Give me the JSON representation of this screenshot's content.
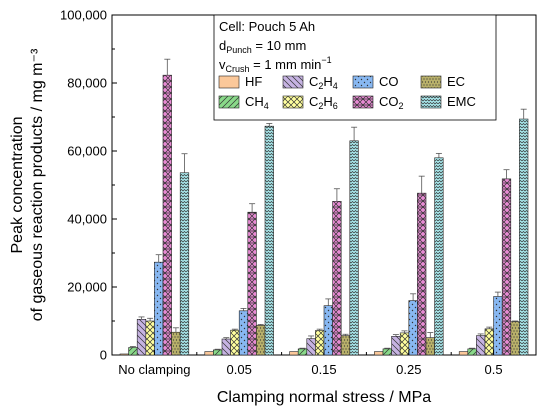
{
  "chart_data": {
    "type": "bar",
    "xlabel": "Clamping normal stress / MPa",
    "ylabel_line1": "Peak concentration",
    "ylabel_line2": "of gaseous reaction products / mg m⁻³",
    "ylim": [
      0,
      100000
    ],
    "yticks": [
      0,
      20000,
      40000,
      60000,
      80000,
      100000
    ],
    "ytick_labels": [
      "0",
      "20,000",
      "40,000",
      "60,000",
      "80,000",
      "100,000"
    ],
    "categories": [
      "No clamping",
      "0.05",
      "0.15",
      "0.25",
      "0.5"
    ],
    "info": {
      "cell": "Cell: Pouch 5 Ah",
      "d_prefix": "d",
      "d_sub": "Punch",
      "d_value": " = 10 mm",
      "v_prefix": "v",
      "v_sub": "Crush",
      "v_value": " = 1 mm min",
      "v_sup": "−1"
    },
    "legend_placement": "top-center",
    "series": [
      {
        "name": "HF",
        "label_parts": [
          "HF"
        ],
        "color": "#fbc89a",
        "pattern": "none",
        "values": [
          300,
          1000,
          1000,
          1000,
          1000
        ],
        "errors": [
          0,
          0,
          0,
          0,
          0
        ]
      },
      {
        "name": "CH4",
        "label_parts": [
          "CH",
          "4",
          ""
        ],
        "color": "#89d989",
        "pattern": "diag-up",
        "values": [
          2200,
          1500,
          1800,
          1800,
          1800
        ],
        "errors": [
          300,
          200,
          200,
          200,
          200
        ]
      },
      {
        "name": "C2H4",
        "label_parts": [
          "C",
          "2",
          "H",
          "4",
          ""
        ],
        "color": "#c6b3e2",
        "pattern": "diag-down",
        "values": [
          10500,
          4700,
          4800,
          5500,
          5700
        ],
        "errors": [
          700,
          400,
          800,
          500,
          500
        ]
      },
      {
        "name": "C2H6",
        "label_parts": [
          "C",
          "2",
          "H",
          "6",
          ""
        ],
        "color": "#ffff9e",
        "pattern": "cross",
        "values": [
          10000,
          7300,
          7200,
          6500,
          7700
        ],
        "errors": [
          800,
          300,
          400,
          600,
          500
        ]
      },
      {
        "name": "CO",
        "label_parts": [
          "CO"
        ],
        "color": "#88b8f2",
        "pattern": "dots",
        "values": [
          27300,
          13000,
          14500,
          16000,
          17200
        ],
        "errors": [
          2200,
          700,
          2000,
          2000,
          1300
        ]
      },
      {
        "name": "CO2",
        "label_parts": [
          "CO",
          "2",
          ""
        ],
        "color": "#e88bd4",
        "pattern": "checker",
        "values": [
          82300,
          42000,
          45200,
          47600,
          51800
        ],
        "errors": [
          4700,
          2500,
          3700,
          5000,
          2700
        ]
      },
      {
        "name": "EC",
        "label_parts": [
          "EC"
        ],
        "color": "#b8b06a",
        "pattern": "dense",
        "values": [
          6700,
          8700,
          5700,
          5100,
          9800
        ],
        "errors": [
          1300,
          300,
          400,
          1500,
          200
        ]
      },
      {
        "name": "EMC",
        "label_parts": [
          "EMC"
        ],
        "color": "#a8e8ec",
        "pattern": "wave",
        "values": [
          53600,
          67300,
          63000,
          58000,
          69400
        ],
        "errors": [
          5600,
          800,
          4000,
          1300,
          2900
        ]
      }
    ]
  }
}
